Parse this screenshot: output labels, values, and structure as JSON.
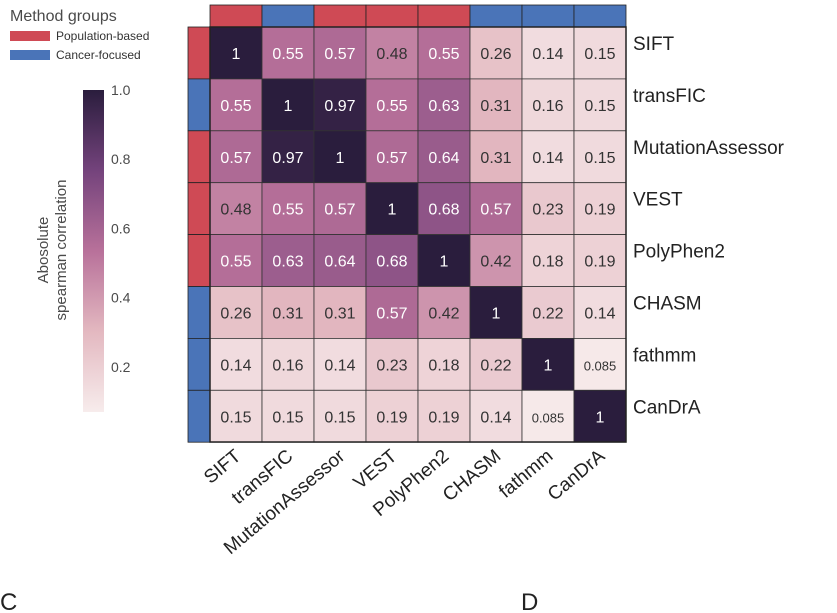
{
  "legend": {
    "title": "Method groups",
    "items": [
      {
        "label": "Population-based",
        "color": "#cf4a55"
      },
      {
        "label": "Cancer-focused",
        "color": "#4a74b8"
      }
    ]
  },
  "colorbar": {
    "label_lines": [
      "Abosolute",
      "spearman correlation"
    ],
    "ticks": [
      "1.0",
      "0.8",
      "0.6",
      "0.4",
      "0.2"
    ],
    "tick_values": [
      1.0,
      0.8,
      0.6,
      0.4,
      0.2
    ],
    "range": [
      0.07,
      1.0
    ]
  },
  "panel_labels": [
    "C",
    "D"
  ],
  "chart_data": {
    "type": "heatmap",
    "title": "",
    "xlabel": "",
    "ylabel": "",
    "methods": [
      "SIFT",
      "transFIC",
      "MutationAssessor",
      "VEST",
      "PolyPhen2",
      "CHASM",
      "fathmm",
      "CanDrA"
    ],
    "groups": [
      "Population-based",
      "Cancer-focused",
      "Population-based",
      "Population-based",
      "Population-based",
      "Cancer-focused",
      "Cancer-focused",
      "Cancer-focused"
    ],
    "values": [
      [
        1,
        0.55,
        0.57,
        0.48,
        0.55,
        0.26,
        0.14,
        0.15
      ],
      [
        0.55,
        1,
        0.97,
        0.55,
        0.63,
        0.31,
        0.16,
        0.15
      ],
      [
        0.57,
        0.97,
        1,
        0.57,
        0.64,
        0.31,
        0.14,
        0.15
      ],
      [
        0.48,
        0.55,
        0.57,
        1,
        0.68,
        0.57,
        0.23,
        0.19
      ],
      [
        0.55,
        0.63,
        0.64,
        0.68,
        1,
        0.42,
        0.18,
        0.19
      ],
      [
        0.26,
        0.31,
        0.31,
        0.57,
        0.42,
        1,
        0.22,
        0.14
      ],
      [
        0.14,
        0.16,
        0.14,
        0.23,
        0.18,
        0.22,
        1,
        0.085
      ],
      [
        0.15,
        0.15,
        0.15,
        0.19,
        0.19,
        0.14,
        0.085,
        1
      ]
    ],
    "labels": [
      [
        "1",
        "0.55",
        "0.57",
        "0.48",
        "0.55",
        "0.26",
        "0.14",
        "0.15"
      ],
      [
        "0.55",
        "1",
        "0.97",
        "0.55",
        "0.63",
        "0.31",
        "0.16",
        "0.15"
      ],
      [
        "0.57",
        "0.97",
        "1",
        "0.57",
        "0.64",
        "0.31",
        "0.14",
        "0.15"
      ],
      [
        "0.48",
        "0.55",
        "0.57",
        "1",
        "0.68",
        "0.57",
        "0.23",
        "0.19"
      ],
      [
        "0.55",
        "0.63",
        "0.64",
        "0.68",
        "1",
        "0.42",
        "0.18",
        "0.19"
      ],
      [
        "0.26",
        "0.31",
        "0.31",
        "0.57",
        "0.42",
        "1",
        "0.22",
        "0.14"
      ],
      [
        "0.14",
        "0.16",
        "0.14",
        "0.23",
        "0.18",
        "0.22",
        "1",
        "0.085"
      ],
      [
        "0.15",
        "0.15",
        "0.15",
        "0.19",
        "0.19",
        "0.14",
        "0.085",
        "1"
      ]
    ]
  }
}
